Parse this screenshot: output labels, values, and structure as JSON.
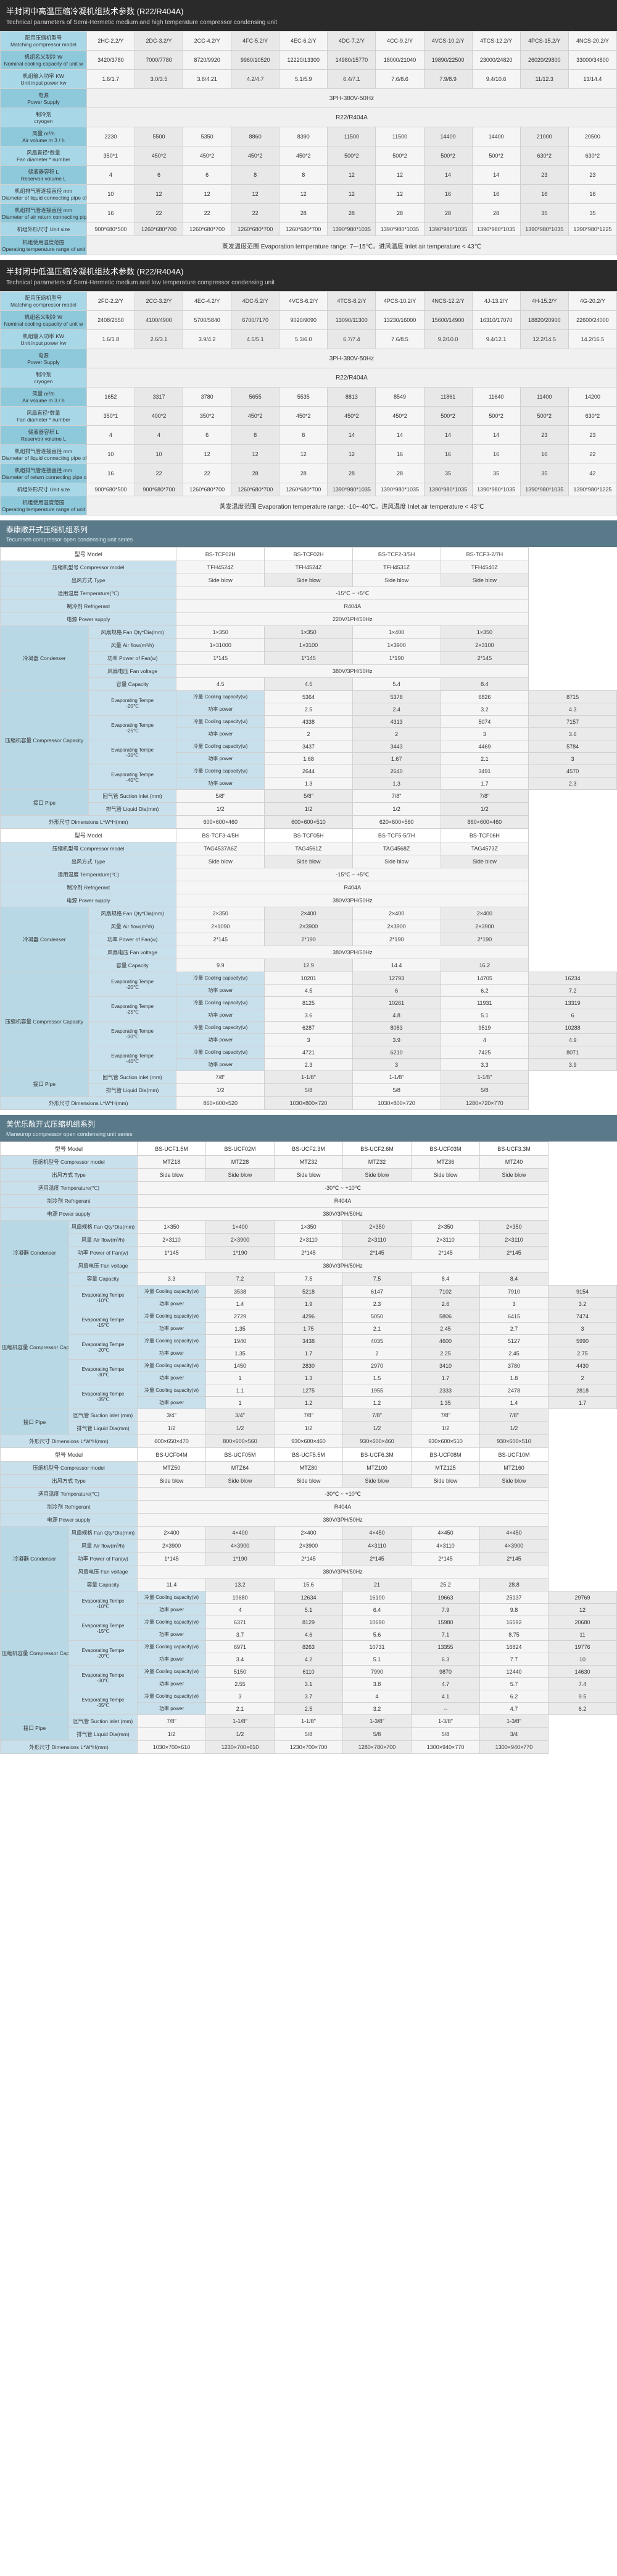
{
  "section1": {
    "title": "半封闭中高温压缩冷凝机组技术参数 (R22/R404A)",
    "subtitle": "Technical parameters of Semi-Hermetic medium and high temperature compressor condensing unit",
    "rows": [
      {
        "label": "配用压缩机型号\nMatching compressor model",
        "cells": [
          "2HC-2.2/Y",
          "2DC-3.2/Y",
          "2CC-4.2/Y",
          "4FC-5.2/Y",
          "4EC-6.2/Y",
          "4DC-7.2/Y",
          "4CC-9.2/Y",
          "4VCS-10.2/Y",
          "4TCS-12.2/Y",
          "4PCS-15.2/Y",
          "4NCS-20.2/Y"
        ]
      },
      {
        "label": "机组名义制冷 W\nNominal cooling capacity of unit w",
        "cells": [
          "3420/3780",
          "7000/7780",
          "8720/9920",
          "9960/10520",
          "12220/13300",
          "14980/15770",
          "18000/21040",
          "19890/22500",
          "23000/24820",
          "26020/29800",
          "33000/34800"
        ]
      },
      {
        "label": "机组输入功率 KW\nUnit input power kw",
        "cells": [
          "1.6/1.7",
          "3.0/3.5",
          "3.6/4.21",
          "4.2/4.7",
          "5.1/5.9",
          "6.4/7.1",
          "7.6/8.6",
          "7.9/8.9",
          "9.4/10.6",
          "11/12.3",
          "13/14.4"
        ]
      },
      {
        "label": "电源\nPower Supply",
        "full": "3PH-380V-50Hz"
      },
      {
        "label": "制冷剂\ncryogen",
        "full": "R22/R404A"
      },
      {
        "label": "风量 m³/h\nAir volume m 3 / h",
        "cells": [
          "2230",
          "5500",
          "5350",
          "8860",
          "8390",
          "11500",
          "11500",
          "14400",
          "14400",
          "21000",
          "20500"
        ]
      },
      {
        "label": "风扇直径*数量\nFan diameter * number",
        "cells": [
          "350*1",
          "450*2",
          "450*2",
          "450*2",
          "450*2",
          "500*2",
          "500*2",
          "500*2",
          "500*2",
          "630*2",
          "630*2"
        ]
      },
      {
        "label": "储液器容积 L\nReservoir volume L",
        "cells": [
          "4",
          "6",
          "6",
          "8",
          "8",
          "12",
          "12",
          "14",
          "14",
          "23",
          "23"
        ]
      },
      {
        "label": "机组排气管连接直径 mm\nDiameter of liquid connecting pipe of unit mm",
        "cells": [
          "10",
          "12",
          "12",
          "12",
          "12",
          "12",
          "12",
          "16",
          "16",
          "16",
          "16"
        ]
      },
      {
        "label": "机组排气管连接直径 mm\nDiameter of air return connecting pipe of unit mm",
        "cells": [
          "16",
          "22",
          "22",
          "22",
          "28",
          "28",
          "28",
          "28",
          "28",
          "35",
          "35"
        ]
      },
      {
        "label": "机组外形尺寸 Unit size",
        "cells": [
          "900*680*500",
          "1260*680*700",
          "1260*680*700",
          "1260*680*700",
          "1260*680*700",
          "1390*980*1035",
          "1390*980*1035",
          "1390*980*1035",
          "1390*980*1035",
          "1390*980*1035",
          "1390*980*1225"
        ]
      },
      {
        "label": "机组使用温度范围\nOperating temperature range of unit",
        "full": "蒸发温度范围 Evaporation temperature range: 7~-15℃。进风温度 Inlet air temperature < 43℃"
      }
    ]
  },
  "section2": {
    "title": "半封闭中低温压缩冷凝机组技术参数 (R22/R404A)",
    "subtitle": "Technical parameters of Semi-Hermetic medium and low temperature compressor condensing unit",
    "rows": [
      {
        "label": "配用压缩机型号\nMatching compressor model",
        "cells": [
          "2FC-2.2/Y",
          "2CC-3.2/Y",
          "4EC-4.2/Y",
          "4DC-5.2/Y",
          "4VCS-6.2/Y",
          "4TCS-8.2/Y",
          "4PCS-10.2/Y",
          "4NCS-12.2/Y",
          "4J-13.2/Y",
          "4H-15.2/Y",
          "4G-20.2/Y"
        ]
      },
      {
        "label": "机组名义制冷 W\nNominal cooling capacity of unit w",
        "cells": [
          "2408/2550",
          "4100/4900",
          "5700/5840",
          "6700/7170",
          "9020/9090",
          "13090/11300",
          "13230/16000",
          "15600/14900",
          "16310/17070",
          "18820/20900",
          "22600/24000"
        ]
      },
      {
        "label": "机组输入功率 KW\nUnit input power kw",
        "cells": [
          "1.6/1.8",
          "2.6/3.1",
          "3.9/4.2",
          "4.5/5.1",
          "5.3/6.0",
          "6.7/7.4",
          "7.6/8.5",
          "9.2/10.0",
          "9.4/12.1",
          "12.2/14.5",
          "14.2/16.5"
        ]
      },
      {
        "label": "电源\nPower Supply",
        "full": "3PH-380V-50Hz"
      },
      {
        "label": "制冷剂\ncryogen",
        "full": "R22/R404A"
      },
      {
        "label": "风量 m³/h\nAir volume m 3 / h",
        "cells": [
          "1652",
          "3317",
          "3780",
          "5655",
          "5535",
          "8813",
          "8549",
          "11861",
          "11640",
          "11400",
          "14200"
        ]
      },
      {
        "label": "风扇直径*数量\nFan diameter * number",
        "cells": [
          "350*1",
          "400*2",
          "350*2",
          "450*2",
          "450*2",
          "450*2",
          "450*2",
          "500*2",
          "500*2",
          "500*2",
          "630*2"
        ]
      },
      {
        "label": "储液器容积 L\nReservoir volume L",
        "cells": [
          "4",
          "4",
          "6",
          "8",
          "8",
          "14",
          "14",
          "14",
          "14",
          "23",
          "23"
        ]
      },
      {
        "label": "机组排气管连接直径 mm\nDiameter of liquid connecting pipe of unit mm",
        "cells": [
          "10",
          "10",
          "12",
          "12",
          "12",
          "12",
          "16",
          "16",
          "16",
          "16",
          "22"
        ]
      },
      {
        "label": "机组排气管连接直径 mm\nDiameter of return connecting pipe of unit mm",
        "cells": [
          "16",
          "22",
          "22",
          "28",
          "28",
          "28",
          "28",
          "35",
          "35",
          "35",
          "42"
        ]
      },
      {
        "label": "机组外形尺寸 Unit size",
        "cells": [
          "900*680*500",
          "900*680*700",
          "1260*680*700",
          "1260*680*700",
          "1260*680*700",
          "1390*980*1035",
          "1390*980*1035",
          "1390*980*1035",
          "1390*980*1035",
          "1390*980*1035",
          "1390*980*1225"
        ]
      },
      {
        "label": "机组使用温度范围\nOperating temperature range of unit",
        "full": "蒸发温度范围 Evaporation temperature range: -10~-40℃。进风温度 Inlet air temperature < 43℃"
      }
    ]
  },
  "tecumseh": {
    "title": "泰康敞开式压缩机组系列",
    "subtitle": "Tecumseh compressor open condensing unit series",
    "blocks": [
      {
        "models": [
          "BS-TCF02H",
          "BS-TCF02H",
          "BS-TCF2-3/5H",
          "BS-TCF3-2/7H"
        ],
        "compressor": [
          "TFH4524Z",
          "TFH4524Z",
          "TFH4531Z",
          "TFH4540Z"
        ],
        "outlet": "Side blow",
        "temp": "-15℃ ~ +5℃",
        "refrigerant": "R404A",
        "power": "220V/1PH/50Hz",
        "fan_qty": [
          "1×350",
          "1×350",
          "1×400",
          "1×350"
        ],
        "air_flow": [
          "1×31000",
          "1×3100",
          "1×3900",
          "2×3100"
        ],
        "fan_power": [
          "1*145",
          "1*145",
          "1*190",
          "2*145"
        ],
        "fan_voltage": "380V/3PH/50Hz",
        "capacity": [
          "4.5",
          "4.5",
          "5.4",
          "8.4"
        ],
        "evap20_cool": [
          "5364",
          "5378",
          "6826",
          "8715"
        ],
        "evap20_pow": [
          "2.5",
          "2.4",
          "3.2",
          "4.3"
        ],
        "evap25_cool": [
          "4338",
          "4313",
          "5074",
          "7157"
        ],
        "evap25_pow": [
          "2",
          "2",
          "3",
          "3.6"
        ],
        "evap30_cool": [
          "3437",
          "3443",
          "4469",
          "5784"
        ],
        "evap30_pow": [
          "1.68",
          "1.67",
          "2.1",
          "3"
        ],
        "evap40_cool": [
          "2644",
          "2640",
          "3491",
          "4570"
        ],
        "evap40_pow": [
          "1.3",
          "1.3",
          "1.7",
          "2.3"
        ],
        "suction": [
          "5/8\"",
          "5/8\"",
          "7/8\"",
          "7/8\""
        ],
        "liquid": [
          "1/2",
          "1/2",
          "1/2",
          "1/2"
        ],
        "dims": [
          "600×600×460",
          "600×600×510",
          "620×600×560",
          "860×600×460"
        ]
      },
      {
        "models": [
          "BS-TCF3-4/5H",
          "BS-TCF05H",
          "BS-TCF5-5/7H",
          "BS-TCF06H"
        ],
        "compressor": [
          "TAG4537A6Z",
          "TAG4561Z",
          "TAG4568Z",
          "TAG4573Z"
        ],
        "outlet": "Side blow",
        "temp": "-15℃ ~ +5℃",
        "refrigerant": "R404A",
        "power": "380V/3PH/50Hz",
        "fan_qty": [
          "2×350",
          "2×400",
          "2×400",
          "2×400"
        ],
        "air_flow": [
          "2×1090",
          "2×3900",
          "2×3900",
          "2×3900"
        ],
        "fan_power": [
          "2*145",
          "2*190",
          "2*190",
          "2*190"
        ],
        "fan_voltage": "380V/3PH/50Hz",
        "capacity": [
          "9.9",
          "12.9",
          "14.4",
          "16.2"
        ],
        "evap20_cool": [
          "10201",
          "12793",
          "14705",
          "16234"
        ],
        "evap20_pow": [
          "4.5",
          "6",
          "6.2",
          "7.2"
        ],
        "evap25_cool": [
          "8125",
          "10261",
          "11931",
          "13319"
        ],
        "evap25_pow": [
          "3.6",
          "4.8",
          "5.1",
          "6"
        ],
        "evap30_cool": [
          "6287",
          "8083",
          "9519",
          "10288"
        ],
        "evap30_pow": [
          "3",
          "3.9",
          "4",
          "4.9"
        ],
        "evap40_cool": [
          "4721",
          "6210",
          "7425",
          "8071"
        ],
        "evap40_pow": [
          "2.3",
          "3",
          "3.3",
          "3.9"
        ],
        "suction": [
          "7/8\"",
          "1-1/8\"",
          "1-1/8\"",
          "1-1/8\""
        ],
        "liquid": [
          "1/2",
          "5/8",
          "5/8",
          "5/8"
        ],
        "dims": [
          "860×600×520",
          "1030×800×720",
          "1030×800×720",
          "1280×720×770"
        ]
      }
    ]
  },
  "maneurop": {
    "title": "美优乐敞开式压缩机组系列",
    "subtitle": "Maneurop compressor open condensing unit series",
    "blocks": [
      {
        "models": [
          "BS-UCF1.5M",
          "BS-UCF02M",
          "BS-UCF2.3M",
          "BS-UCF2.6M",
          "BS-UCF03M",
          "BS-UCF3.3M"
        ],
        "compressor": [
          "MTZ18",
          "MTZ28",
          "MTZ32",
          "MTZ32",
          "MTZ36",
          "MTZ40"
        ],
        "outlet": "Side blow",
        "temp": "-30℃ ~ +10℃",
        "refrigerant": "R404A",
        "power": "380V/3PH/50Hz",
        "fan_qty": [
          "1×350",
          "1×400",
          "1×350",
          "2×350",
          "2×350",
          "2×350"
        ],
        "air_flow": [
          "2×3110",
          "2×3900",
          "2×3110",
          "2×3110",
          "2×3110",
          "2×3110"
        ],
        "fan_power": [
          "1*145",
          "1*190",
          "2*145",
          "2*145",
          "2*145",
          "2*145"
        ],
        "fan_voltage": "380V/3PH/50Hz",
        "capacity": [
          "3.3",
          "7.2",
          "7.5",
          "7.5",
          "8.4",
          "8.4"
        ],
        "evap10_cool": [
          "3538",
          "5218",
          "6147",
          "7102",
          "7910",
          "9154"
        ],
        "evap10_pow": [
          "1.4",
          "1.9",
          "2.3",
          "2.6",
          "3",
          "3.2"
        ],
        "evap15_cool": [
          "2729",
          "4296",
          "5050",
          "5806",
          "6415",
          "7474"
        ],
        "evap15_pow": [
          "1.35",
          "1.75",
          "2.1",
          "2.45",
          "2.7",
          "3"
        ],
        "evap20_cool": [
          "1940",
          "3438",
          "4035",
          "4600",
          "5127",
          "5990"
        ],
        "evap20_pow": [
          "1.35",
          "1.7",
          "2",
          "2.25",
          "2.45",
          "2.75"
        ],
        "evap30_cool": [
          "1450",
          "2830",
          "2970",
          "3410",
          "3780",
          "4430"
        ],
        "evap30_pow": [
          "1",
          "1.3",
          "1.5",
          "1.7",
          "1.8",
          "2"
        ],
        "evap35_cool": [
          "1.1",
          "1275",
          "1955",
          "2333",
          "2478",
          "2818"
        ],
        "evap35_pow": [
          "1",
          "1.2",
          "1.2",
          "1.35",
          "1.4",
          "1.7"
        ],
        "suction": [
          "3/4\"",
          "3/4\"",
          "7/8\"",
          "7/8\"",
          "7/8\"",
          "7/8\""
        ],
        "liquid": [
          "1/2",
          "1/2",
          "1/2",
          "1/2",
          "1/2",
          "1/2"
        ],
        "dims": [
          "600×650×470",
          "800×600×560",
          "930×600×460",
          "930×600×460",
          "930×600×510",
          "930×600×510"
        ]
      },
      {
        "models": [
          "BS-UCF04M",
          "BS-UCF05M",
          "BS-UCF5.5M",
          "BS-UCF6.3M",
          "BS-UCF08M",
          "BS-UCF10M"
        ],
        "compressor": [
          "MTZ50",
          "MTZ64",
          "MTZ80",
          "MTZ100",
          "MTZ125",
          "MTZ160"
        ],
        "outlet": "Side blow",
        "temp": "-30℃ ~ +10℃",
        "refrigerant": "R404A",
        "power": "380V/3PH/50Hz",
        "fan_qty": [
          "2×400",
          "4×400",
          "2×400",
          "4×450",
          "4×450",
          "4×450"
        ],
        "air_flow": [
          "2×3900",
          "4×3900",
          "2×3900",
          "4×3110",
          "4×3110",
          "4×3900"
        ],
        "fan_power": [
          "1*145",
          "1*190",
          "2*145",
          "2*145",
          "2*145",
          "2*145"
        ],
        "fan_voltage": "380V/3PH/50Hz",
        "capacity": [
          "11.4",
          "13.2",
          "15.6",
          "21",
          "25.2",
          "28.8"
        ],
        "evap10_cool": [
          "10680",
          "12634",
          "16100",
          "19663",
          "25137",
          "29769"
        ],
        "evap10_pow": [
          "4",
          "5.1",
          "6.4",
          "7.9",
          "9.8",
          "12"
        ],
        "evap15_cool": [
          "6371",
          "8129",
          "10690",
          "15980",
          "16592",
          "20680"
        ],
        "evap15_pow": [
          "3.7",
          "4.6",
          "5.6",
          "7.1",
          "8.75",
          "11"
        ],
        "evap20_cool": [
          "6971",
          "8263",
          "10731",
          "13355",
          "16824",
          "19776"
        ],
        "evap20_pow": [
          "3.4",
          "4.2",
          "5.1",
          "6.3",
          "7.7",
          "10"
        ],
        "evap30_cool": [
          "5150",
          "6110",
          "7990",
          "9870",
          "12440",
          "14630"
        ],
        "evap30_pow": [
          "2.55",
          "3.1",
          "3.8",
          "4.7",
          "5.7",
          "7.4"
        ],
        "evap35_cool": [
          "3",
          "3.7",
          "4",
          "4.1",
          "6.2",
          "9.5"
        ],
        "evap35_pow": [
          "2.1",
          "2.5",
          "3.2",
          "--",
          "4.7",
          "6.2"
        ],
        "suction": [
          "7/8\"",
          "1-1/8\"",
          "1-1/8\"",
          "1-3/8\"",
          "1-3/8\"",
          "1-3/8\""
        ],
        "liquid": [
          "1/2",
          "1/2",
          "5/8",
          "5/8",
          "5/8",
          "3/4"
        ],
        "dims": [
          "1030×700×610",
          "1230×700×610",
          "1230×700×700",
          "1280×780×700",
          "1300×940×770",
          "1300×940×770"
        ]
      }
    ]
  },
  "labels": {
    "model": "型号 Model",
    "compressor": "压缩机型号 Compressor model",
    "outlet": "出风方式 Type",
    "temp": "适用温度 Temperature(℃)",
    "refrigerant": "制冷剂 Refrigerant",
    "power": "电源 Power supply",
    "condenser": "冷凝器 Condenser",
    "fan_qty": "风扇规格 Fan Qty*Dia(mm)",
    "air_flow": "风量 Air flow(m³/h)",
    "fan_power": "功率 Power of Fan(w)",
    "fan_voltage": "风扇电压 Fan voltage",
    "capacity": "容量 Capacity",
    "comp_cap": "压缩机容量 Compressor Capacity",
    "evap": "Evaporating Tempe",
    "cool_cap": "冷量 Cooling capacity(w)",
    "pow": "功率 power",
    "pipe": "接口 Pipe",
    "suction": "回气管 Suction inlet (mm)",
    "liquid": "排气管 Liquid Dia(mm)",
    "dims": "外形尺寸 Dimensions L*W*H(mm)"
  }
}
